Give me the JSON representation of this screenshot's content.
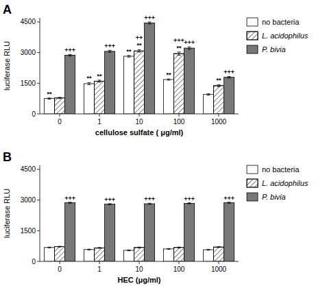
{
  "chart_data": [
    {
      "type": "bar",
      "title": "A",
      "categories": [
        "0",
        "1",
        "10",
        "100",
        "1000"
      ],
      "series": [
        {
          "name": "no bacteria",
          "color": "#ffffff",
          "values": [
            750,
            1480,
            2820,
            1680,
            950
          ],
          "errors": [
            30,
            50,
            40,
            30,
            35
          ],
          "annotations": [
            "**",
            "**",
            "**",
            "**",
            null
          ]
        },
        {
          "name": "L. acidophilus",
          "color": "#ffffff",
          "values": [
            780,
            1600,
            3080,
            2950,
            1380
          ],
          "errors": [
            30,
            50,
            60,
            80,
            50
          ],
          "annotations": [
            null,
            "**",
            [
              "**",
              "++"
            ],
            [
              "**",
              "+++"
            ],
            "**"
          ]
        },
        {
          "name": "P. bivia",
          "color": "#787878",
          "values": [
            2870,
            3060,
            4450,
            3220,
            1790
          ],
          "errors": [
            40,
            50,
            50,
            60,
            40
          ],
          "annotations": [
            "+++",
            "+++",
            "+++",
            "+++",
            "+++"
          ]
        }
      ],
      "xlabel": "cellulose sulfate ( μg/ml)",
      "ylabel": "luciferase RLU",
      "ylim": [
        0,
        4700
      ],
      "yticks": [
        0,
        1500,
        3000,
        4500
      ],
      "grid": false,
      "legend": "right"
    },
    {
      "type": "bar",
      "title": "B",
      "categories": [
        "0",
        "1",
        "10",
        "100",
        "1000"
      ],
      "series": [
        {
          "name": "no bacteria",
          "color": "#ffffff",
          "values": [
            680,
            580,
            540,
            610,
            570
          ],
          "errors": [
            20,
            20,
            20,
            20,
            20
          ]
        },
        {
          "name": "L. acidophilus",
          "color": "#ffffff",
          "values": [
            720,
            660,
            680,
            680,
            700
          ],
          "errors": [
            20,
            20,
            20,
            20,
            20
          ]
        },
        {
          "name": "P. bivia",
          "color": "#787878",
          "values": [
            2870,
            2800,
            2820,
            2840,
            2870
          ],
          "errors": [
            25,
            25,
            25,
            25,
            25
          ],
          "annotations": [
            "+++",
            "+++",
            "+++",
            "+++",
            "+++"
          ]
        }
      ],
      "xlabel": "HEC (μg/ml)",
      "ylabel": "luciferase RLU",
      "ylim": [
        0,
        4700
      ],
      "yticks": [
        0,
        1500,
        3000,
        4500
      ],
      "grid": false,
      "legend": "right"
    }
  ]
}
